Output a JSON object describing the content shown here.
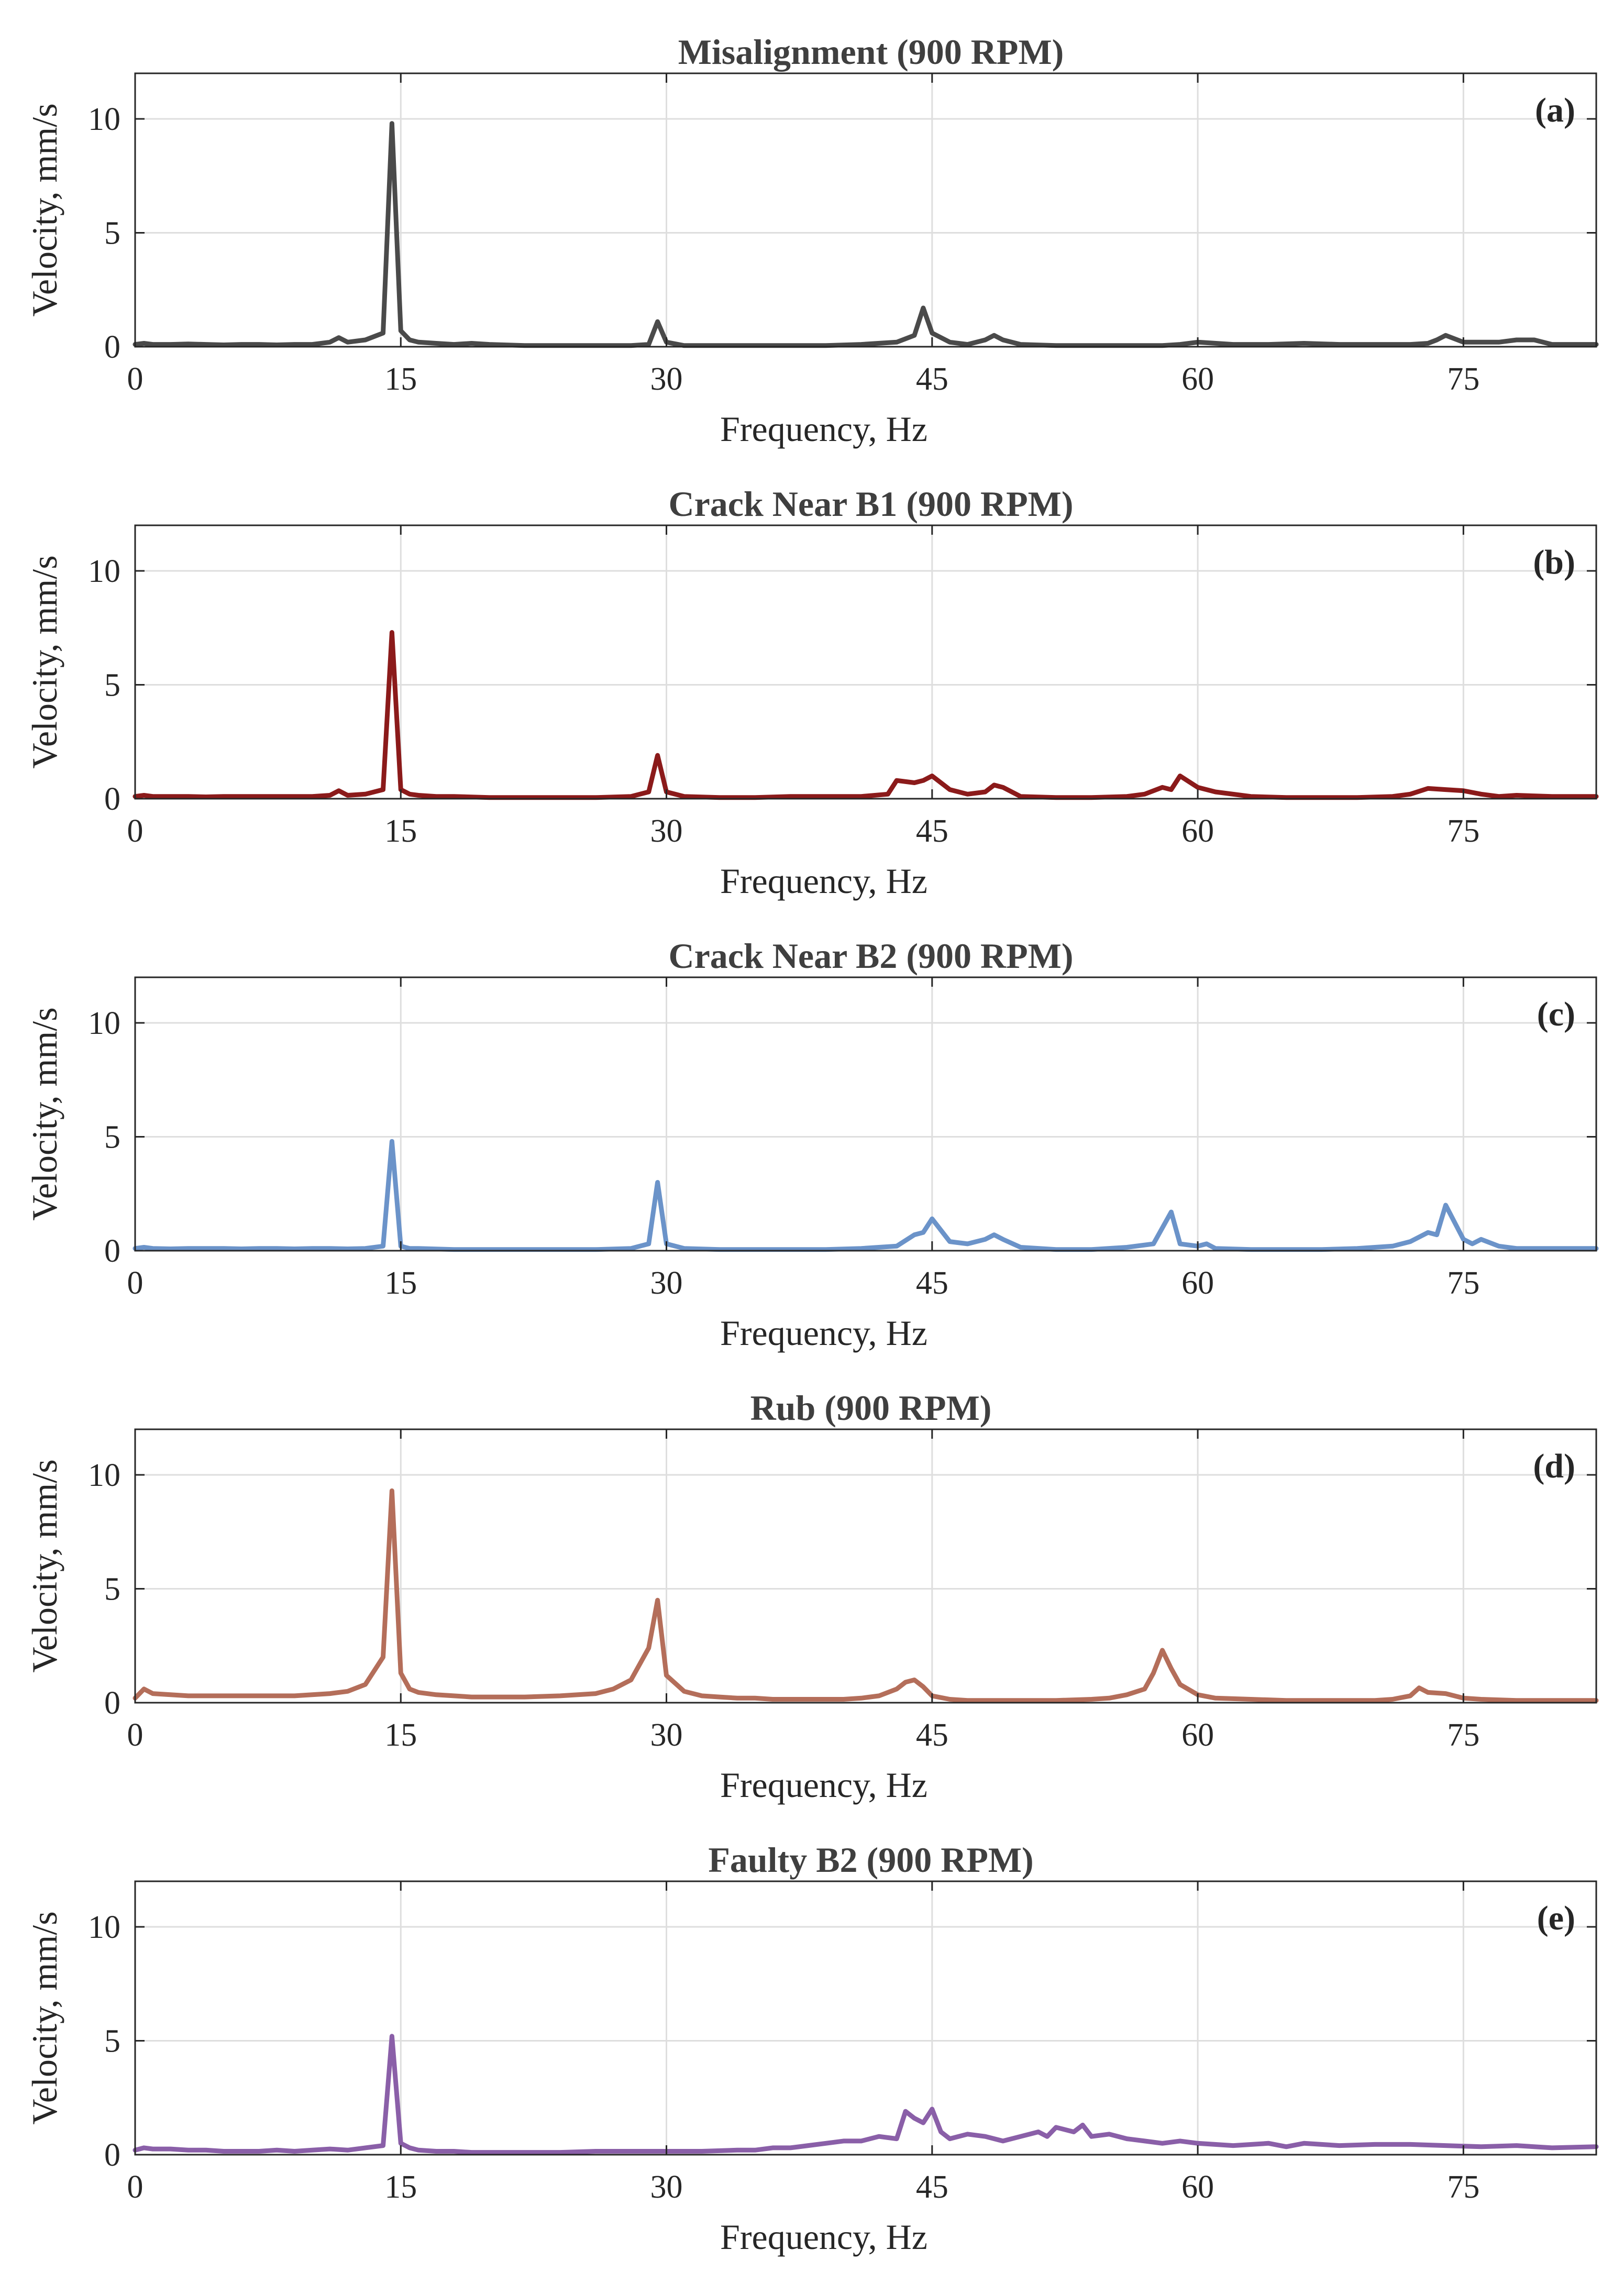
{
  "chart_data": [
    {
      "type": "line",
      "title": "Misalignment (900 RPM)",
      "panel_label": "(a)",
      "xlabel": "Frequency, Hz",
      "ylabel": "Velocity, mm/s",
      "xlim": [
        0,
        82.5
      ],
      "ylim": [
        0,
        12
      ],
      "xticks": [
        0,
        15,
        30,
        45,
        60,
        75
      ],
      "yticks": [
        0,
        5,
        10
      ],
      "grid": true,
      "color": "#4a4a4a",
      "series": [
        {
          "x": [
            0,
            0.5,
            1,
            2,
            3,
            4,
            5,
            6,
            7,
            8,
            9,
            10,
            11,
            11.5,
            12,
            13,
            14,
            14.5,
            15,
            15.5,
            16,
            17,
            18,
            19,
            20,
            22,
            24,
            26,
            28,
            29,
            29.5,
            30,
            31,
            33,
            35,
            37,
            39,
            41,
            43,
            44,
            44.5,
            45,
            46,
            47,
            48,
            48.5,
            49,
            50,
            52,
            54,
            56,
            58,
            59,
            60,
            62,
            64,
            66,
            68,
            70,
            72,
            73,
            73.5,
            74,
            75,
            76,
            77,
            78,
            79,
            80,
            81,
            82.5
          ],
          "y": [
            0.1,
            0.15,
            0.1,
            0.1,
            0.12,
            0.1,
            0.08,
            0.1,
            0.1,
            0.08,
            0.1,
            0.1,
            0.2,
            0.4,
            0.2,
            0.3,
            0.6,
            9.8,
            0.7,
            0.3,
            0.2,
            0.15,
            0.1,
            0.15,
            0.1,
            0.05,
            0.05,
            0.05,
            0.05,
            0.1,
            1.1,
            0.2,
            0.05,
            0.05,
            0.05,
            0.05,
            0.05,
            0.1,
            0.2,
            0.5,
            1.7,
            0.6,
            0.2,
            0.1,
            0.3,
            0.5,
            0.3,
            0.1,
            0.05,
            0.05,
            0.05,
            0.05,
            0.1,
            0.2,
            0.1,
            0.1,
            0.15,
            0.1,
            0.1,
            0.1,
            0.15,
            0.3,
            0.5,
            0.2,
            0.2,
            0.2,
            0.3,
            0.3,
            0.1,
            0.1,
            0.1
          ]
        }
      ]
    },
    {
      "type": "line",
      "title": "Crack Near B1 (900 RPM)",
      "panel_label": "(b)",
      "xlabel": "Frequency, Hz",
      "ylabel": "Velocity, mm/s",
      "xlim": [
        0,
        82.5
      ],
      "ylim": [
        0,
        12
      ],
      "xticks": [
        0,
        15,
        30,
        45,
        60,
        75
      ],
      "yticks": [
        0,
        5,
        10
      ],
      "grid": true,
      "color": "#8b1a1a",
      "series": [
        {
          "x": [
            0,
            0.5,
            1,
            2,
            3,
            4,
            5,
            6,
            7,
            8,
            9,
            10,
            11,
            11.5,
            12,
            13,
            14,
            14.5,
            15,
            15.5,
            16,
            17,
            18,
            20,
            22,
            24,
            26,
            28,
            29,
            29.5,
            30,
            31,
            33,
            35,
            37,
            39,
            41,
            42.5,
            43,
            44,
            44.5,
            45,
            46,
            47,
            48,
            48.5,
            49,
            50,
            52,
            54,
            56,
            57,
            58,
            58.5,
            59,
            60,
            61,
            63,
            65,
            67,
            69,
            71,
            72,
            73,
            74,
            75,
            76,
            77,
            78,
            80,
            82.5
          ],
          "y": [
            0.1,
            0.15,
            0.1,
            0.1,
            0.1,
            0.08,
            0.1,
            0.1,
            0.1,
            0.1,
            0.1,
            0.1,
            0.15,
            0.35,
            0.15,
            0.2,
            0.4,
            7.3,
            0.4,
            0.2,
            0.15,
            0.1,
            0.1,
            0.05,
            0.05,
            0.05,
            0.05,
            0.1,
            0.3,
            1.9,
            0.3,
            0.1,
            0.05,
            0.05,
            0.1,
            0.1,
            0.1,
            0.2,
            0.8,
            0.7,
            0.8,
            1.0,
            0.4,
            0.2,
            0.3,
            0.6,
            0.5,
            0.1,
            0.05,
            0.05,
            0.1,
            0.2,
            0.5,
            0.4,
            1.0,
            0.5,
            0.3,
            0.1,
            0.05,
            0.05,
            0.05,
            0.1,
            0.2,
            0.45,
            0.4,
            0.35,
            0.2,
            0.1,
            0.15,
            0.1,
            0.1
          ]
        }
      ]
    },
    {
      "type": "line",
      "title": "Crack Near B2 (900 RPM)",
      "panel_label": "(c)",
      "xlabel": "Frequency, Hz",
      "ylabel": "Velocity, mm/s",
      "xlim": [
        0,
        82.5
      ],
      "ylim": [
        0,
        12
      ],
      "xticks": [
        0,
        15,
        30,
        45,
        60,
        75
      ],
      "yticks": [
        0,
        5,
        10
      ],
      "grid": true,
      "color": "#6b93c9",
      "series": [
        {
          "x": [
            0,
            0.5,
            1,
            2,
            3,
            4,
            5,
            6,
            7,
            8,
            9,
            10,
            11,
            12,
            13,
            14,
            14.5,
            15,
            15.5,
            16,
            18,
            20,
            22,
            24,
            26,
            28,
            29,
            29.5,
            30,
            31,
            33,
            35,
            37,
            39,
            41,
            43,
            44,
            44.5,
            45,
            46,
            47,
            48,
            48.5,
            49,
            50,
            52,
            54,
            56,
            57.5,
            58.5,
            59,
            60,
            60.5,
            61,
            63,
            65,
            67,
            69,
            71,
            72,
            73,
            73.5,
            74,
            75,
            75.5,
            76,
            77,
            78,
            80,
            82.5
          ],
          "y": [
            0.1,
            0.15,
            0.1,
            0.08,
            0.1,
            0.1,
            0.1,
            0.08,
            0.1,
            0.1,
            0.08,
            0.1,
            0.1,
            0.08,
            0.1,
            0.2,
            4.8,
            0.2,
            0.1,
            0.1,
            0.05,
            0.05,
            0.05,
            0.05,
            0.05,
            0.1,
            0.3,
            3.0,
            0.3,
            0.1,
            0.05,
            0.05,
            0.05,
            0.05,
            0.1,
            0.2,
            0.7,
            0.8,
            1.4,
            0.4,
            0.3,
            0.5,
            0.7,
            0.5,
            0.15,
            0.05,
            0.05,
            0.15,
            0.3,
            1.7,
            0.3,
            0.2,
            0.3,
            0.1,
            0.05,
            0.05,
            0.05,
            0.1,
            0.2,
            0.4,
            0.8,
            0.7,
            2.0,
            0.5,
            0.3,
            0.5,
            0.2,
            0.1,
            0.1,
            0.1
          ]
        }
      ]
    },
    {
      "type": "line",
      "title": "Rub (900 RPM)",
      "panel_label": "(d)",
      "xlabel": "Frequency, Hz",
      "ylabel": "Velocity, mm/s",
      "xlim": [
        0,
        82.5
      ],
      "ylim": [
        0,
        12
      ],
      "xticks": [
        0,
        15,
        30,
        45,
        60,
        75
      ],
      "yticks": [
        0,
        5,
        10
      ],
      "grid": true,
      "color": "#b46e5a",
      "series": [
        {
          "x": [
            0,
            0.5,
            1,
            2,
            3,
            4,
            5,
            6,
            7,
            8,
            9,
            10,
            11,
            12,
            13,
            14,
            14.5,
            15,
            15.5,
            16,
            17,
            18,
            19,
            20,
            22,
            24,
            26,
            27,
            28,
            29,
            29.5,
            30,
            31,
            32,
            33,
            34,
            35,
            36,
            38,
            40,
            41,
            42,
            43,
            43.5,
            44,
            44.5,
            45,
            46,
            47,
            48,
            49,
            50,
            52,
            54,
            55,
            56,
            57,
            57.5,
            58,
            58.5,
            59,
            60,
            61,
            63,
            65,
            67,
            69,
            70,
            71,
            72,
            72.5,
            73,
            74,
            75,
            76,
            78,
            80,
            82.5
          ],
          "y": [
            0.2,
            0.6,
            0.4,
            0.35,
            0.3,
            0.3,
            0.3,
            0.3,
            0.3,
            0.3,
            0.3,
            0.35,
            0.4,
            0.5,
            0.8,
            2.0,
            9.3,
            1.3,
            0.6,
            0.45,
            0.35,
            0.3,
            0.25,
            0.25,
            0.25,
            0.3,
            0.4,
            0.6,
            1.0,
            2.4,
            4.5,
            1.2,
            0.5,
            0.3,
            0.25,
            0.2,
            0.2,
            0.15,
            0.15,
            0.15,
            0.2,
            0.3,
            0.6,
            0.9,
            1.0,
            0.7,
            0.3,
            0.15,
            0.1,
            0.1,
            0.1,
            0.1,
            0.1,
            0.15,
            0.2,
            0.35,
            0.6,
            1.3,
            2.3,
            1.5,
            0.8,
            0.35,
            0.2,
            0.15,
            0.1,
            0.1,
            0.1,
            0.1,
            0.15,
            0.3,
            0.65,
            0.45,
            0.4,
            0.2,
            0.15,
            0.1,
            0.1,
            0.1
          ]
        }
      ]
    },
    {
      "type": "line",
      "title": "Faulty B2 (900 RPM)",
      "panel_label": "(e)",
      "xlabel": "Frequency, Hz",
      "ylabel": "Velocity, mm/s",
      "xlim": [
        0,
        82.5
      ],
      "ylim": [
        0,
        12
      ],
      "xticks": [
        0,
        15,
        30,
        45,
        60,
        75
      ],
      "yticks": [
        0,
        5,
        10
      ],
      "grid": true,
      "color": "#8a5fa8",
      "series": [
        {
          "x": [
            0,
            0.5,
            1,
            2,
            3,
            4,
            5,
            6,
            7,
            8,
            9,
            10,
            11,
            12,
            13,
            14,
            14.5,
            15,
            15.5,
            16,
            17,
            18,
            19,
            20,
            22,
            24,
            26,
            28,
            30,
            32,
            34,
            35,
            36,
            37,
            38,
            39,
            40,
            41,
            42,
            43,
            43.5,
            44,
            44.5,
            45,
            45.5,
            46,
            47,
            48,
            49,
            50,
            51,
            51.5,
            52,
            53,
            53.5,
            54,
            55,
            56,
            57,
            58,
            59,
            60,
            62,
            64,
            65,
            66,
            68,
            70,
            72,
            74,
            76,
            78,
            80,
            82.5
          ],
          "y": [
            0.2,
            0.3,
            0.25,
            0.25,
            0.2,
            0.2,
            0.15,
            0.15,
            0.15,
            0.2,
            0.15,
            0.2,
            0.25,
            0.2,
            0.3,
            0.4,
            5.2,
            0.5,
            0.3,
            0.2,
            0.15,
            0.15,
            0.1,
            0.1,
            0.1,
            0.1,
            0.15,
            0.15,
            0.15,
            0.15,
            0.2,
            0.2,
            0.3,
            0.3,
            0.4,
            0.5,
            0.6,
            0.6,
            0.8,
            0.7,
            1.9,
            1.6,
            1.4,
            2.0,
            1.0,
            0.7,
            0.9,
            0.8,
            0.6,
            0.8,
            1.0,
            0.8,
            1.2,
            1.0,
            1.3,
            0.8,
            0.9,
            0.7,
            0.6,
            0.5,
            0.6,
            0.5,
            0.4,
            0.5,
            0.35,
            0.5,
            0.4,
            0.45,
            0.45,
            0.4,
            0.35,
            0.4,
            0.3,
            0.35
          ]
        }
      ]
    }
  ]
}
